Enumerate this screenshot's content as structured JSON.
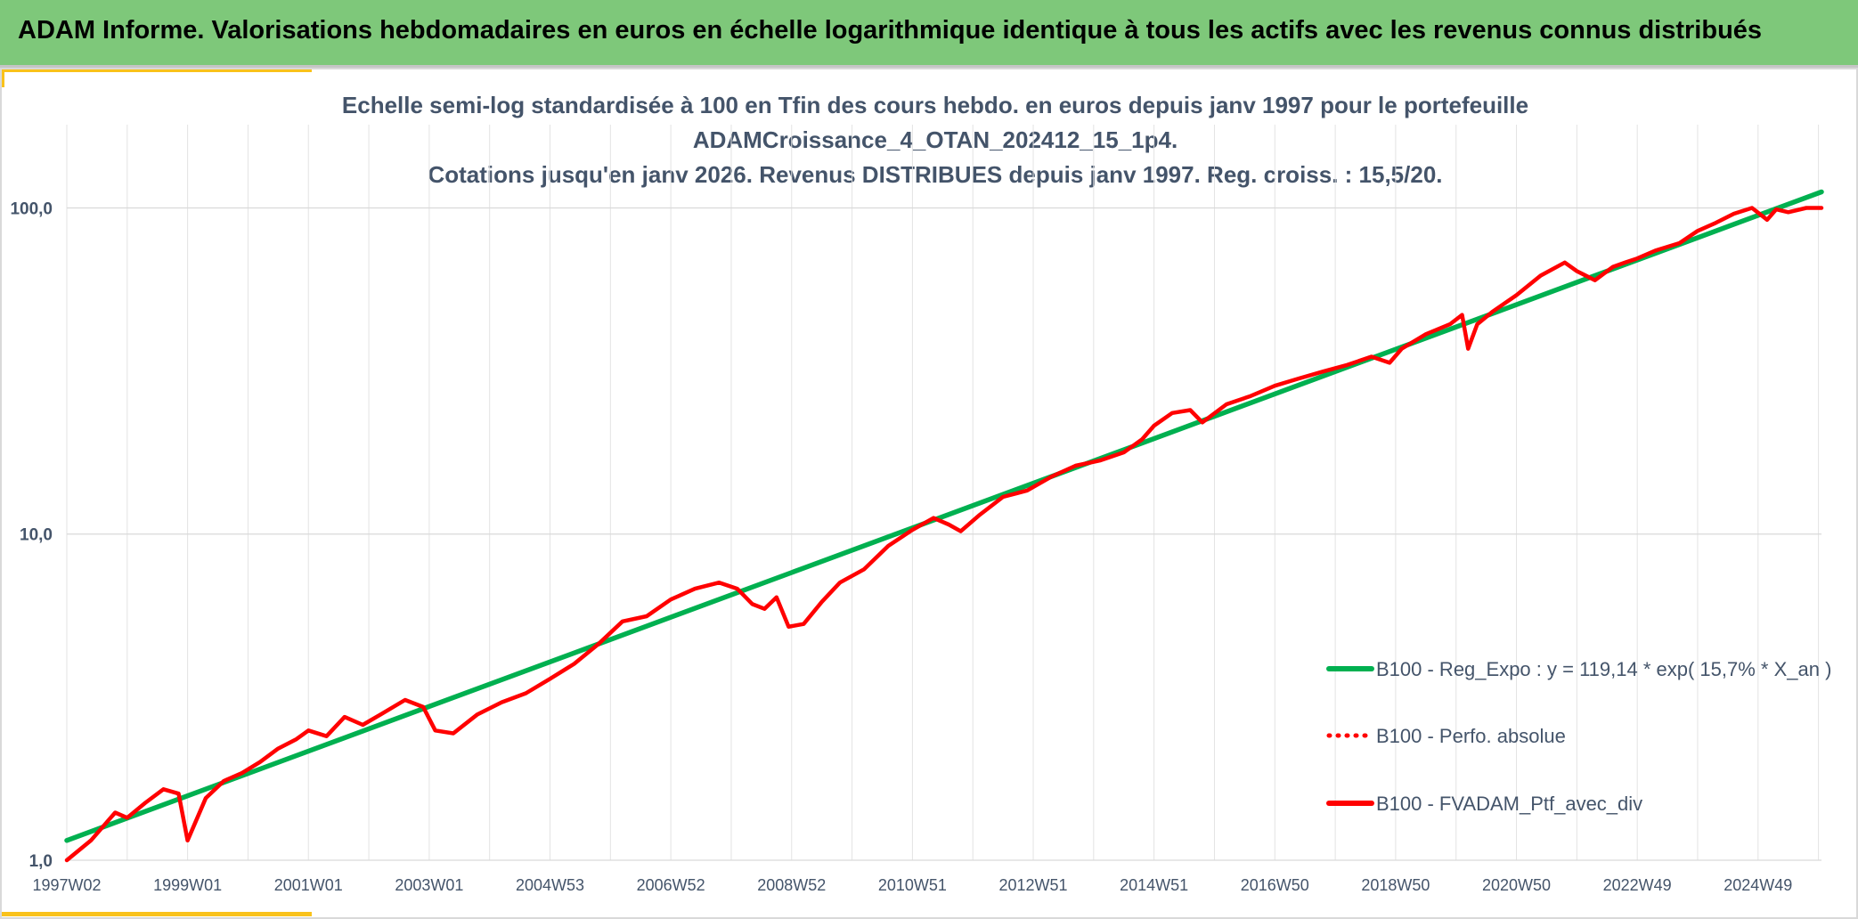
{
  "header": {
    "title": "ADAM Informe. Valorisations hebdomadaires en euros en échelle logarithmique identique à tous les actifs avec les revenus connus distribués"
  },
  "colors": {
    "banner": "#7ec87a",
    "accent": "#f9c21b",
    "regression": "#00b050",
    "portfolio": "#ff0000",
    "text": "#44546a"
  },
  "chart_data": {
    "type": "line",
    "title_lines": [
      "Echelle semi-log standardisée à 100 en Tfin des cours hebdo. en euros depuis janv 1997 pour le portefeuille",
      "ADAMCroissance_4_OTAN_202412_15_1p4.",
      "Cotations jusqu'en janv 2026. Revenus DISTRIBUES depuis janv 1997. Reg. croiss. : 15,5/20."
    ],
    "y_scale": "log",
    "ylim": [
      1,
      180
    ],
    "y_ticks": [
      {
        "value": 1,
        "label": "1,0"
      },
      {
        "value": 10,
        "label": "10,0"
      },
      {
        "value": 100,
        "label": "100,0"
      }
    ],
    "xlim": [
      1997.0,
      2026.05
    ],
    "x_ticks": [
      {
        "value": 1997.0,
        "label": "1997W02"
      },
      {
        "value": 1999.0,
        "label": "1999W01"
      },
      {
        "value": 2001.0,
        "label": "2001W01"
      },
      {
        "value": 2003.0,
        "label": "2003W01"
      },
      {
        "value": 2005.0,
        "label": "2004W53"
      },
      {
        "value": 2007.0,
        "label": "2006W52"
      },
      {
        "value": 2009.0,
        "label": "2008W52"
      },
      {
        "value": 2011.0,
        "label": "2010W51"
      },
      {
        "value": 2013.0,
        "label": "2012W51"
      },
      {
        "value": 2015.0,
        "label": "2014W51"
      },
      {
        "value": 2017.0,
        "label": "2016W50"
      },
      {
        "value": 2019.0,
        "label": "2018W50"
      },
      {
        "value": 2021.0,
        "label": "2020W50"
      },
      {
        "value": 2023.0,
        "label": "2022W49"
      },
      {
        "value": 2025.0,
        "label": "2024W49"
      }
    ],
    "grid": true,
    "legend_position": "bottom-right",
    "series": [
      {
        "name": "B100 - Reg_Expo : y = 119,14 * exp( 15,7% *  X_an )",
        "color": "#00b050",
        "style": "solid",
        "x": [
          1997.0,
          2026.05
        ],
        "y": [
          1.15,
          112
        ]
      },
      {
        "name": "B100 - Perfo. absolue",
        "color": "#ff0000",
        "style": "dotted",
        "x": [],
        "y": []
      },
      {
        "name": "B100 - FVADAM_Ptf_avec_div",
        "color": "#ff0000",
        "style": "solid",
        "x": [
          1997.0,
          1997.4,
          1997.8,
          1998.0,
          1998.3,
          1998.6,
          1998.85,
          1999.0,
          1999.3,
          1999.6,
          1999.9,
          2000.2,
          2000.5,
          2000.8,
          2001.0,
          2001.3,
          2001.6,
          2001.9,
          2002.2,
          2002.6,
          2002.9,
          2003.1,
          2003.4,
          2003.8,
          2004.2,
          2004.6,
          2005.0,
          2005.4,
          2005.8,
          2006.2,
          2006.6,
          2007.0,
          2007.4,
          2007.8,
          2008.1,
          2008.35,
          2008.55,
          2008.75,
          2008.95,
          2009.2,
          2009.5,
          2009.8,
          2010.2,
          2010.6,
          2011.0,
          2011.35,
          2011.6,
          2011.8,
          2012.1,
          2012.5,
          2012.9,
          2013.3,
          2013.7,
          2014.1,
          2014.5,
          2014.8,
          2015.0,
          2015.3,
          2015.6,
          2015.8,
          2016.2,
          2016.6,
          2017.0,
          2017.4,
          2017.8,
          2018.2,
          2018.6,
          2018.9,
          2019.1,
          2019.5,
          2019.9,
          2020.1,
          2020.2,
          2020.35,
          2020.6,
          2021.0,
          2021.4,
          2021.8,
          2022.0,
          2022.3,
          2022.6,
          2022.8,
          2023.0,
          2023.3,
          2023.7,
          2024.0,
          2024.3,
          2024.6,
          2024.9,
          2025.15,
          2025.3,
          2025.5,
          2025.8,
          2026.05
        ],
        "y": [
          1.0,
          1.15,
          1.4,
          1.35,
          1.5,
          1.65,
          1.6,
          1.15,
          1.55,
          1.75,
          1.85,
          2.0,
          2.2,
          2.35,
          2.5,
          2.4,
          2.75,
          2.6,
          2.8,
          3.1,
          2.95,
          2.5,
          2.45,
          2.8,
          3.05,
          3.25,
          3.6,
          4.0,
          4.6,
          5.4,
          5.6,
          6.3,
          6.8,
          7.1,
          6.8,
          6.1,
          5.9,
          6.4,
          5.2,
          5.3,
          6.2,
          7.1,
          7.8,
          9.2,
          10.3,
          11.2,
          10.7,
          10.2,
          11.4,
          13.0,
          13.6,
          15.0,
          16.2,
          16.8,
          17.8,
          19.5,
          21.5,
          23.5,
          24.0,
          22.0,
          25.0,
          26.5,
          28.5,
          30.0,
          31.5,
          33.0,
          35.0,
          33.5,
          37.0,
          41.0,
          44.0,
          47.0,
          37.0,
          44.0,
          48.0,
          54.0,
          62.0,
          68.0,
          64.0,
          60.0,
          66.0,
          68.0,
          70.0,
          74.0,
          78.0,
          85.0,
          90.0,
          96.0,
          100.0,
          92.0,
          99.0,
          97.0,
          100.0,
          100.0
        ]
      }
    ]
  }
}
